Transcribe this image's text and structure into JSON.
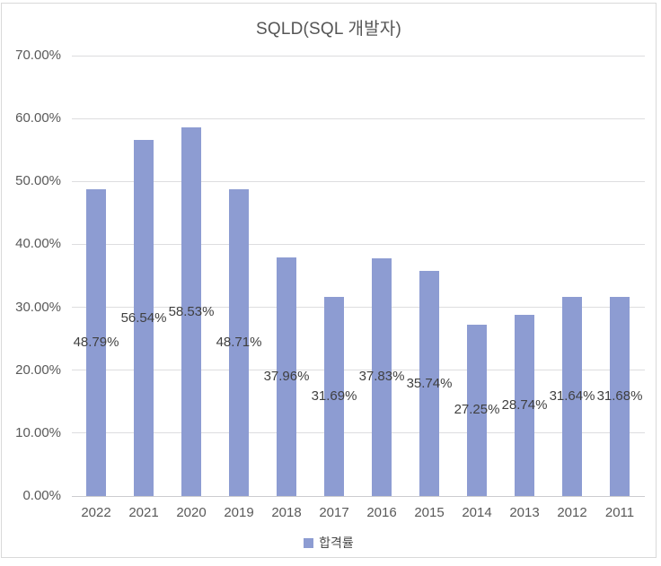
{
  "chart_data": {
    "type": "bar",
    "title": "SQLD(SQL 개발자)",
    "xlabel": "",
    "ylabel": "",
    "categories": [
      "2022",
      "2021",
      "2020",
      "2019",
      "2018",
      "2017",
      "2016",
      "2015",
      "2014",
      "2013",
      "2012",
      "2011"
    ],
    "series": [
      {
        "name": "합격률",
        "values": [
          48.79,
          56.54,
          58.53,
          48.71,
          37.96,
          31.69,
          37.83,
          35.74,
          27.25,
          28.74,
          31.64,
          31.68
        ]
      }
    ],
    "value_labels": [
      "48.79%",
      "56.54%",
      "58.53%",
      "48.71%",
      "37.96%",
      "31.69%",
      "37.83%",
      "35.74%",
      "27.25%",
      "28.74%",
      "31.64%",
      "31.68%"
    ],
    "value_label_position": "inside-center",
    "y_tick_labels": [
      "0.00%",
      "10.00%",
      "20.00%",
      "30.00%",
      "40.00%",
      "50.00%",
      "60.00%",
      "70.00%"
    ],
    "ylim": [
      0,
      70
    ],
    "grid": true,
    "legend_position": "bottom",
    "legend_label": "합격률",
    "bar_color": "#8d9cd2",
    "colors": {
      "grid": "#dddddf",
      "axis_line": "#cccccf",
      "border": "#d9d9d9",
      "title_text": "#555555",
      "axis_text": "#595959",
      "value_text": "#3f3f3f"
    }
  }
}
